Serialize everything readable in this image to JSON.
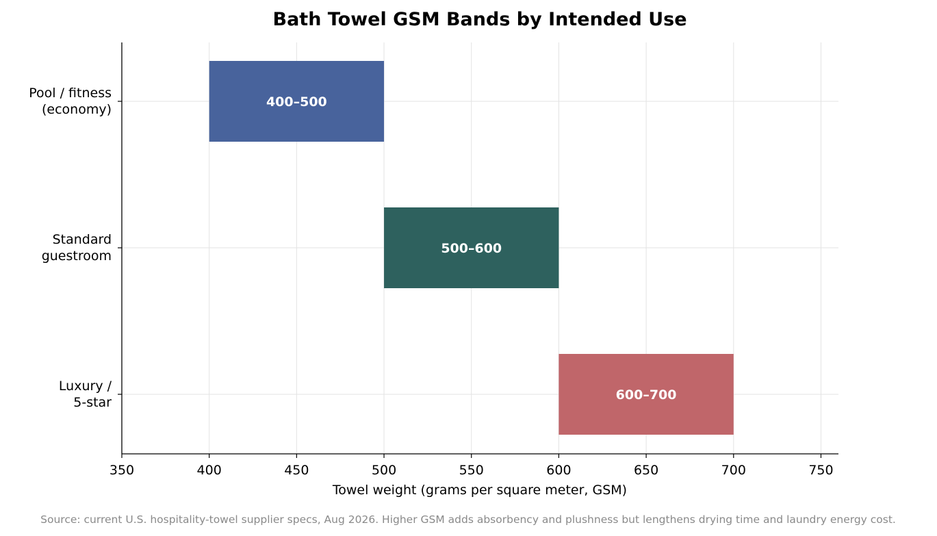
{
  "chart_data": {
    "type": "bar",
    "orientation": "horizontal-range",
    "title": "Bath Towel GSM Bands by Intended Use",
    "xlabel": "Towel weight (grams per square meter, GSM)",
    "ylabel": "",
    "xlim": [
      350,
      760
    ],
    "xticks": [
      350,
      400,
      450,
      500,
      550,
      600,
      650,
      700,
      750
    ],
    "grid": true,
    "categories": [
      {
        "lines": [
          "Pool / fitness",
          "(economy)"
        ]
      },
      {
        "lines": [
          "Standard",
          "guestroom"
        ]
      },
      {
        "lines": [
          "Luxury /",
          "5-star"
        ]
      }
    ],
    "ranges": [
      {
        "start": 400,
        "end": 500,
        "label": "400–500",
        "color": "#48639c"
      },
      {
        "start": 500,
        "end": 600,
        "label": "500–600",
        "color": "#2e615e"
      },
      {
        "start": 600,
        "end": 700,
        "label": "600–700",
        "color": "#c0666a"
      }
    ],
    "source": "Source: current U.S. hospitality-towel supplier specs, Aug 2026. Higher GSM adds absorbency and plushness but lengthens drying time and laundry energy cost."
  }
}
